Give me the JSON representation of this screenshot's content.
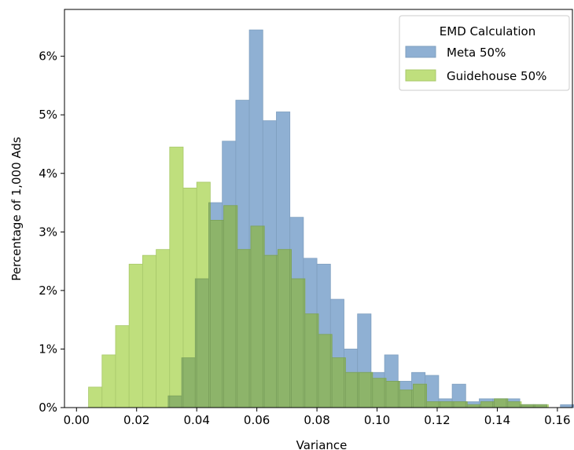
{
  "chart_data": {
    "type": "bar",
    "title": "",
    "xlabel": "Variance",
    "ylabel": "Percentage of 1,000 Ads",
    "xlim": [
      -0.004,
      0.165
    ],
    "ylim": [
      0,
      6.8
    ],
    "x_ticks": [
      "0.00",
      "0.02",
      "0.04",
      "0.06",
      "0.08",
      "0.10",
      "0.12",
      "0.14",
      "0.16"
    ],
    "x_tick_values": [
      0.0,
      0.02,
      0.04,
      0.06,
      0.08,
      0.1,
      0.12,
      0.14,
      0.16
    ],
    "y_ticks": [
      "0%",
      "1%",
      "2%",
      "3%",
      "4%",
      "5%",
      "6%"
    ],
    "y_tick_values": [
      0,
      1,
      2,
      3,
      4,
      5,
      6
    ],
    "bin_width": 0.0045,
    "grid": false,
    "legend": {
      "title": "EMD Calculation",
      "placement": "top-right"
    },
    "series": [
      {
        "name": "Meta 50%",
        "color": "#8fb0d3",
        "edge_color": "#7f9fbf",
        "bins": [
          {
            "x": 0.0305,
            "value": 0.2
          },
          {
            "x": 0.035,
            "value": 0.85
          },
          {
            "x": 0.0395,
            "value": 2.2
          },
          {
            "x": 0.044,
            "value": 3.5
          },
          {
            "x": 0.0485,
            "value": 4.55
          },
          {
            "x": 0.053,
            "value": 5.25
          },
          {
            "x": 0.0575,
            "value": 6.45
          },
          {
            "x": 0.062,
            "value": 4.9
          },
          {
            "x": 0.0665,
            "value": 5.05
          },
          {
            "x": 0.071,
            "value": 3.25
          },
          {
            "x": 0.0755,
            "value": 2.55
          },
          {
            "x": 0.08,
            "value": 2.45
          },
          {
            "x": 0.0845,
            "value": 1.85
          },
          {
            "x": 0.089,
            "value": 1.0
          },
          {
            "x": 0.0935,
            "value": 1.6
          },
          {
            "x": 0.098,
            "value": 0.6
          },
          {
            "x": 0.1025,
            "value": 0.9
          },
          {
            "x": 0.107,
            "value": 0.45
          },
          {
            "x": 0.1115,
            "value": 0.6
          },
          {
            "x": 0.116,
            "value": 0.55
          },
          {
            "x": 0.1205,
            "value": 0.15
          },
          {
            "x": 0.125,
            "value": 0.4
          },
          {
            "x": 0.1295,
            "value": 0.1
          },
          {
            "x": 0.134,
            "value": 0.15
          },
          {
            "x": 0.1385,
            "value": 0.15
          },
          {
            "x": 0.143,
            "value": 0.15
          },
          {
            "x": 0.1475,
            "value": 0.05
          },
          {
            "x": 0.152,
            "value": 0.05
          },
          {
            "x": 0.1565,
            "value": 0.0
          },
          {
            "x": 0.161,
            "value": 0.05
          }
        ]
      },
      {
        "name": "Guidehouse 50%",
        "color": "#bfdf7d",
        "edge_color": "#a8c86a",
        "bins": [
          {
            "x": 0.004,
            "value": 0.35
          },
          {
            "x": 0.0085,
            "value": 0.9
          },
          {
            "x": 0.013,
            "value": 1.4
          },
          {
            "x": 0.0175,
            "value": 2.45
          },
          {
            "x": 0.022,
            "value": 2.6
          },
          {
            "x": 0.0265,
            "value": 2.7
          },
          {
            "x": 0.031,
            "value": 4.45
          },
          {
            "x": 0.0355,
            "value": 3.75
          },
          {
            "x": 0.04,
            "value": 3.85
          },
          {
            "x": 0.0445,
            "value": 3.2
          },
          {
            "x": 0.049,
            "value": 3.45
          },
          {
            "x": 0.0535,
            "value": 2.7
          },
          {
            "x": 0.058,
            "value": 3.1
          },
          {
            "x": 0.0625,
            "value": 2.6
          },
          {
            "x": 0.067,
            "value": 2.7
          },
          {
            "x": 0.0715,
            "value": 2.2
          },
          {
            "x": 0.076,
            "value": 1.6
          },
          {
            "x": 0.0805,
            "value": 1.25
          },
          {
            "x": 0.085,
            "value": 0.85
          },
          {
            "x": 0.0895,
            "value": 0.6
          },
          {
            "x": 0.094,
            "value": 0.6
          },
          {
            "x": 0.0985,
            "value": 0.5
          },
          {
            "x": 0.103,
            "value": 0.45
          },
          {
            "x": 0.1075,
            "value": 0.3
          },
          {
            "x": 0.112,
            "value": 0.4
          },
          {
            "x": 0.1165,
            "value": 0.1
          },
          {
            "x": 0.121,
            "value": 0.1
          },
          {
            "x": 0.1255,
            "value": 0.1
          },
          {
            "x": 0.13,
            "value": 0.05
          },
          {
            "x": 0.1345,
            "value": 0.1
          },
          {
            "x": 0.139,
            "value": 0.15
          },
          {
            "x": 0.1435,
            "value": 0.1
          },
          {
            "x": 0.148,
            "value": 0.05
          },
          {
            "x": 0.1525,
            "value": 0.05
          }
        ]
      }
    ]
  }
}
